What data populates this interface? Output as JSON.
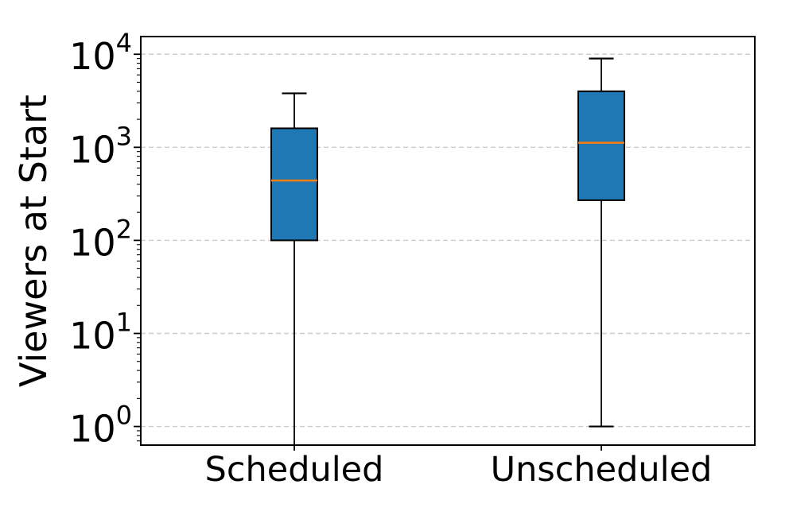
{
  "chart_data": {
    "type": "boxplot",
    "title": "",
    "xlabel": "",
    "ylabel": "Viewers at Start",
    "yscale": "log",
    "ylim_exponents": [
      -0.2,
      4.19
    ],
    "ytick_exponents": [
      0,
      1,
      2,
      3,
      4
    ],
    "ytick_labels": [
      "10⁰",
      "10¹",
      "10²",
      "10³",
      "10⁴"
    ],
    "grid": {
      "axis": "y",
      "which": "major",
      "style": "dashed",
      "color": "#cccccc"
    },
    "categories": [
      "Scheduled",
      "Unscheduled"
    ],
    "series": [
      {
        "name": "Scheduled",
        "whisker_low": null,
        "whisker_low_clipped_below_axis": true,
        "q1": 100,
        "median": 440,
        "q3": 1600,
        "whisker_high": 3800
      },
      {
        "name": "Unscheduled",
        "whisker_low": 1,
        "q1": 270,
        "median": 1120,
        "q3": 4000,
        "whisker_high": 9000
      }
    ],
    "colors": {
      "box_fill": "#1f77b4",
      "median_line": "#ff7f0e",
      "box_edge": "#000000",
      "whisker": "#000000",
      "spine": "#000000",
      "grid": "#cccccc"
    }
  }
}
